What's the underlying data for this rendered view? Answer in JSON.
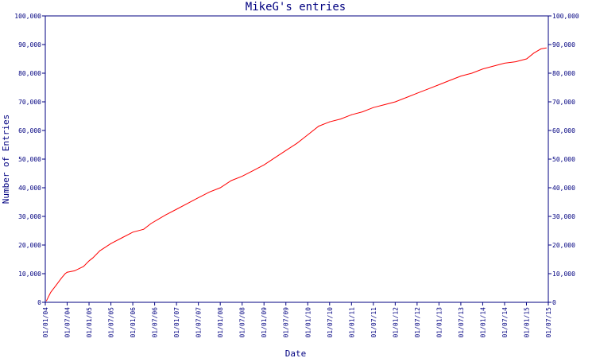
{
  "chart_data": {
    "type": "line",
    "title": "MikeG's entries",
    "xlabel": "Date",
    "ylabel": "Number of Entries",
    "x_tick_labels": [
      "01/01/04",
      "01/07/04",
      "01/01/05",
      "01/07/05",
      "01/01/06",
      "01/07/06",
      "01/01/07",
      "01/07/07",
      "01/01/08",
      "01/07/08",
      "01/01/09",
      "01/07/09",
      "01/01/10",
      "01/07/10",
      "01/01/11",
      "01/07/11",
      "01/01/12",
      "01/07/12",
      "01/01/13",
      "01/07/13",
      "01/01/14",
      "01/07/14",
      "01/01/15",
      "01/07/15"
    ],
    "y_tick_labels": [
      "0",
      "10,000",
      "20,000",
      "30,000",
      "40,000",
      "50,000",
      "60,000",
      "70,000",
      "80,000",
      "90,000",
      "100,000"
    ],
    "ylim": [
      0,
      100000
    ],
    "xlim": [
      "2004-01-01",
      "2015-07-01"
    ],
    "grid": false,
    "series": [
      {
        "color": "#ff0000",
        "x": [
          "2004-01-10",
          "2004-02-15",
          "2004-04-01",
          "2004-05-15",
          "2004-06-15",
          "2004-07-01",
          "2004-09-01",
          "2004-11-15",
          "2005-01-01",
          "2005-02-01",
          "2005-04-01",
          "2005-07-01",
          "2005-10-01",
          "2006-01-01",
          "2006-04-01",
          "2006-06-01",
          "2006-08-01",
          "2006-10-01",
          "2007-01-01",
          "2007-04-01",
          "2007-07-01",
          "2007-10-01",
          "2008-01-01",
          "2008-04-01",
          "2008-07-01",
          "2008-10-01",
          "2009-01-01",
          "2009-04-01",
          "2009-07-01",
          "2009-10-01",
          "2010-01-01",
          "2010-04-01",
          "2010-07-01",
          "2010-10-01",
          "2011-01-01",
          "2011-04-01",
          "2011-07-01",
          "2011-10-01",
          "2012-01-01",
          "2012-04-01",
          "2012-07-01",
          "2012-10-01",
          "2013-01-01",
          "2013-04-01",
          "2013-07-01",
          "2013-10-01",
          "2014-01-01",
          "2014-04-01",
          "2014-07-01",
          "2014-10-01",
          "2015-01-01",
          "2015-03-01",
          "2015-05-01",
          "2015-06-15"
        ],
        "values": [
          500,
          3500,
          6000,
          8500,
          10000,
          10500,
          11000,
          12500,
          14500,
          15500,
          18000,
          20500,
          22500,
          24500,
          25500,
          27500,
          29000,
          30500,
          32500,
          34500,
          36500,
          38500,
          40000,
          42500,
          44000,
          46000,
          48000,
          50500,
          53000,
          55500,
          58500,
          61500,
          63000,
          64000,
          65500,
          66500,
          68000,
          69000,
          70000,
          71500,
          73000,
          74500,
          76000,
          77500,
          79000,
          80000,
          81500,
          82500,
          83500,
          84000,
          85000,
          87000,
          88500,
          88800
        ]
      }
    ]
  }
}
